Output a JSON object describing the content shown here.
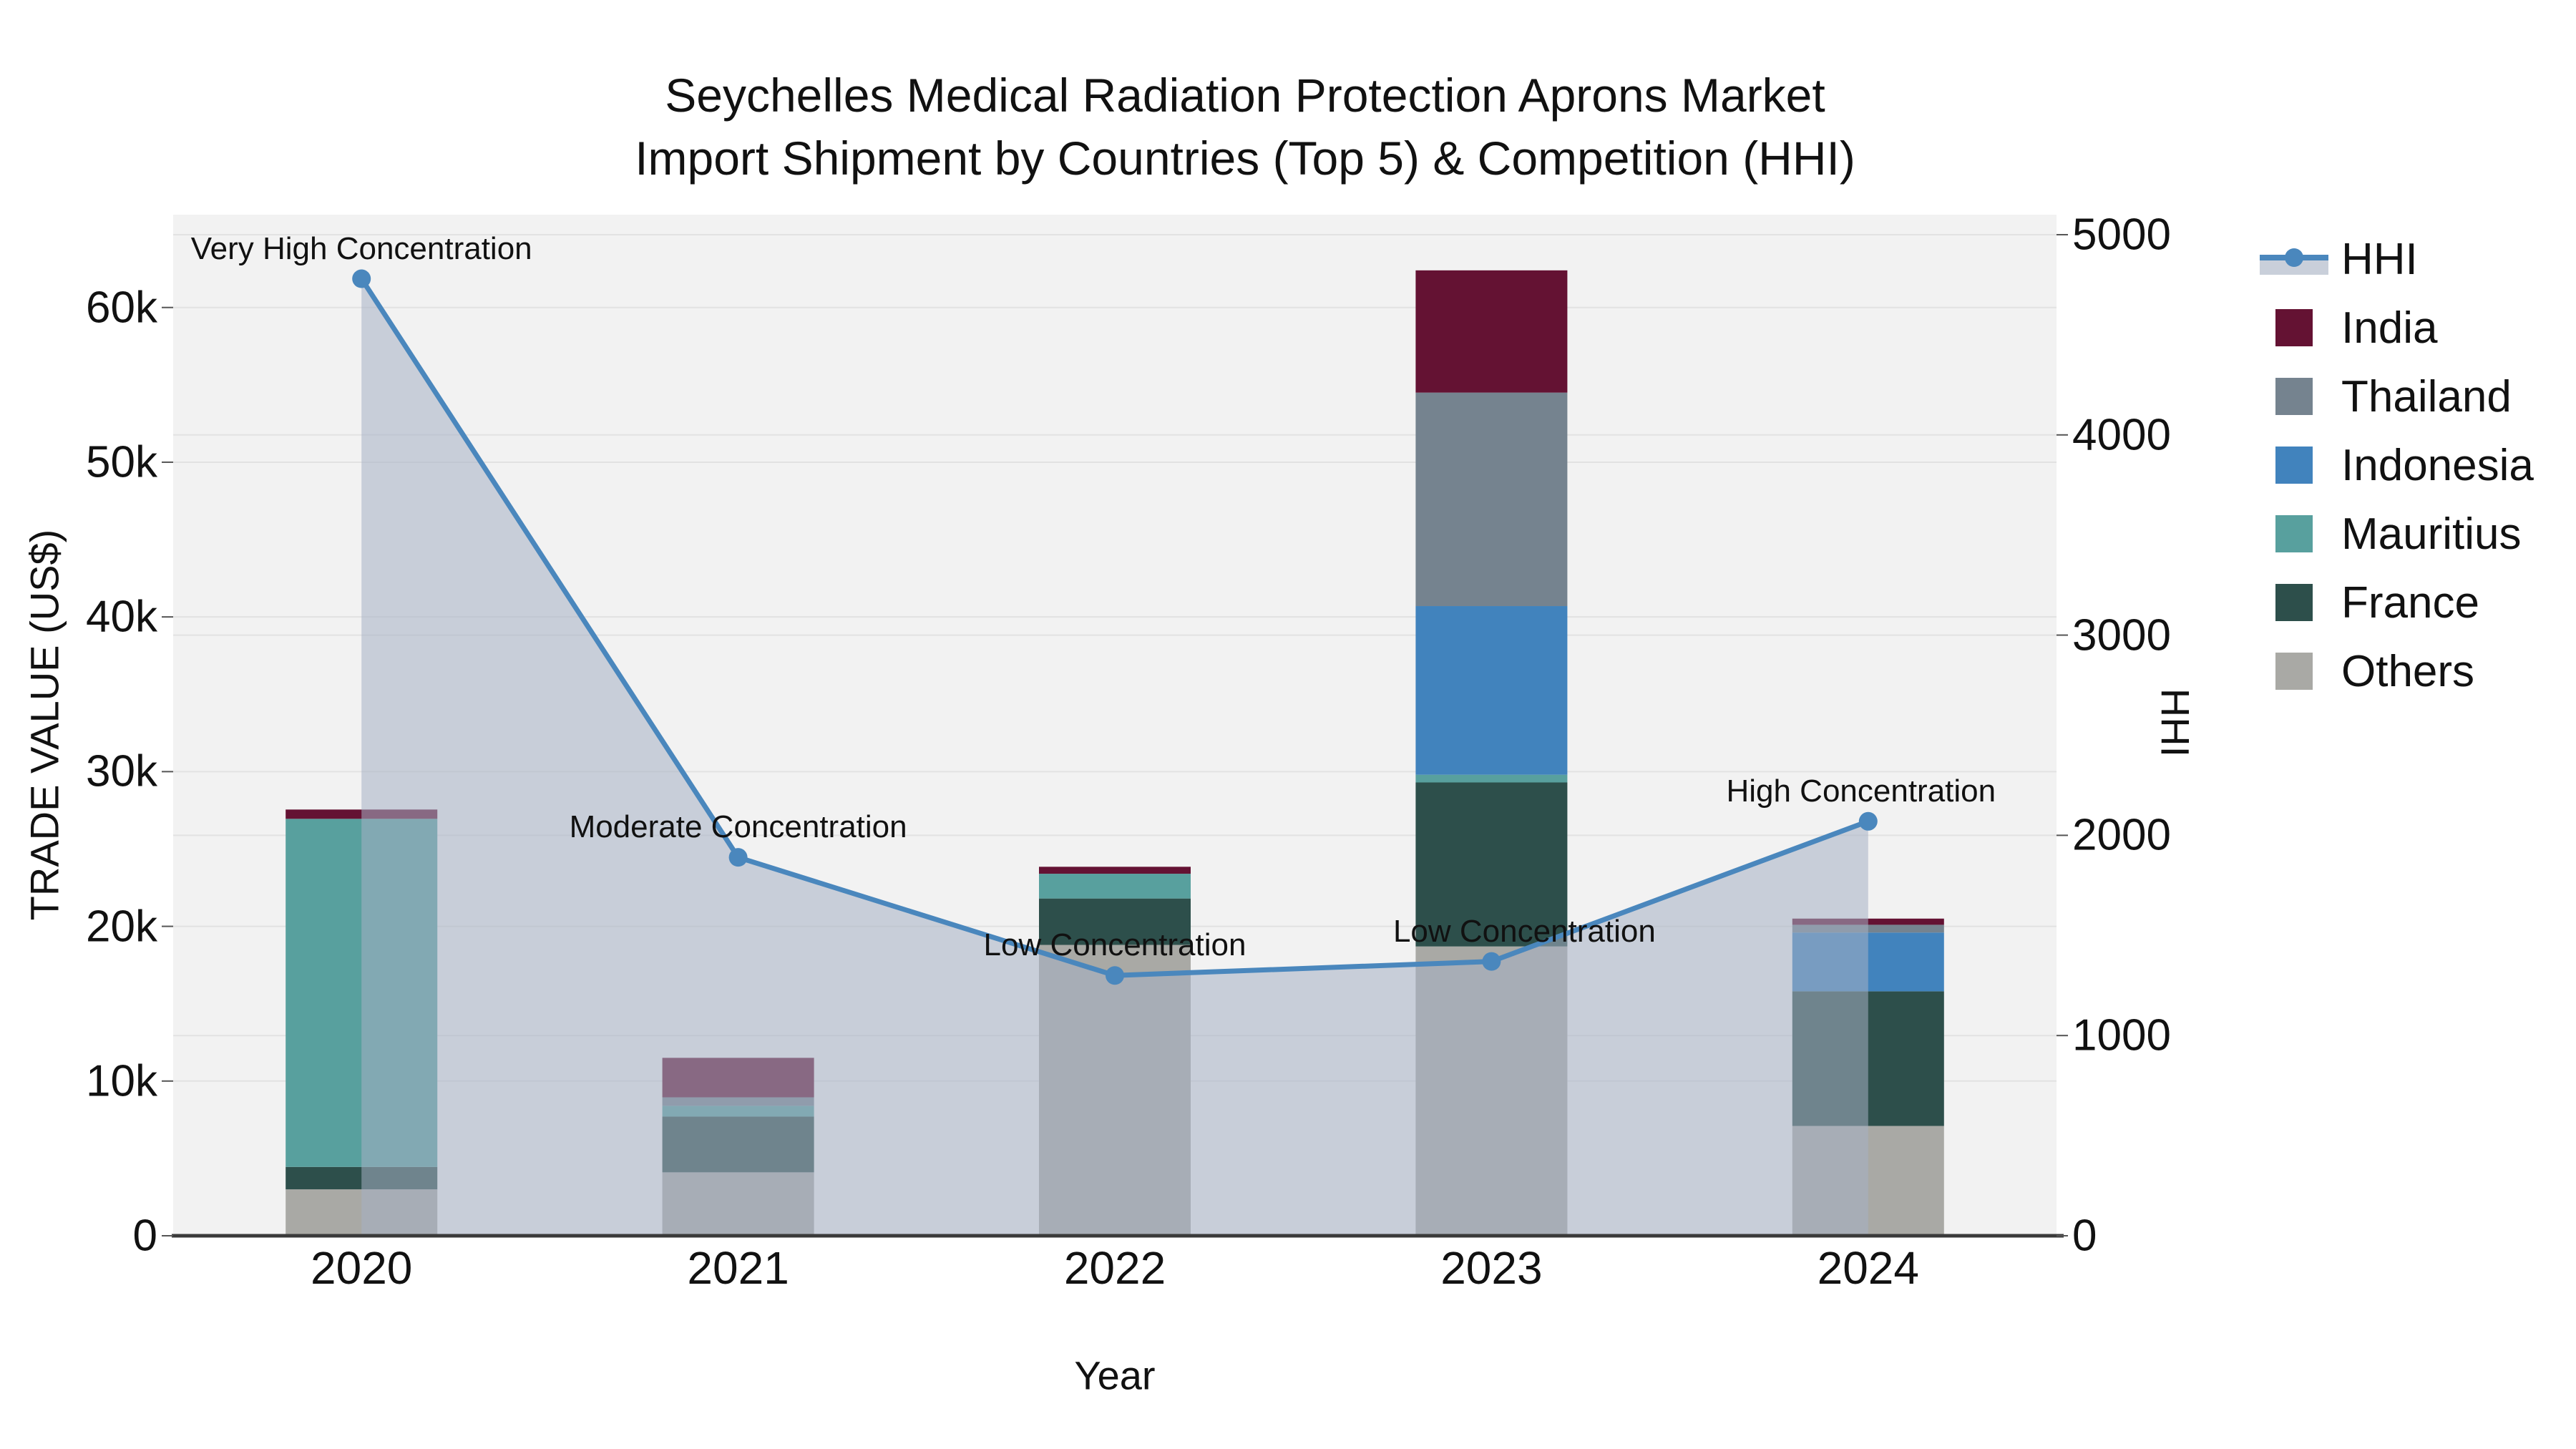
{
  "title": {
    "line1": "Seychelles Medical Radiation Protection Aprons Market",
    "line2": "Import Shipment by Countries (Top 5) & Competition (HHI)"
  },
  "axes": {
    "left": {
      "title": "TRADE VALUE (US$)",
      "tick_labels": [
        "0",
        "10k",
        "20k",
        "30k",
        "40k",
        "50k",
        "60k"
      ],
      "tick_values": [
        0,
        10000,
        20000,
        30000,
        40000,
        50000,
        60000
      ],
      "range": [
        0,
        66000
      ]
    },
    "right": {
      "title": "HHI",
      "tick_labels": [
        "0",
        "1000",
        "2000",
        "3000",
        "4000",
        "5000"
      ],
      "tick_values": [
        0,
        1000,
        2000,
        3000,
        4000,
        5000
      ],
      "range": [
        0,
        5100
      ]
    },
    "x": {
      "title": "Year",
      "categories": [
        "2020",
        "2021",
        "2022",
        "2023",
        "2024"
      ]
    }
  },
  "legend": {
    "items": [
      {
        "label": "HHI",
        "type": "line",
        "color_key": "hhi_line"
      },
      {
        "label": "India",
        "type": "swatch",
        "color_key": "india"
      },
      {
        "label": "Thailand",
        "type": "swatch",
        "color_key": "thailand"
      },
      {
        "label": "Indonesia",
        "type": "swatch",
        "color_key": "indonesia"
      },
      {
        "label": "Mauritius",
        "type": "swatch",
        "color_key": "mauritius"
      },
      {
        "label": "France",
        "type": "swatch",
        "color_key": "france"
      },
      {
        "label": "Others",
        "type": "swatch",
        "color_key": "others"
      }
    ]
  },
  "annotations": [
    {
      "year": "2020",
      "text": "Very High Concentration"
    },
    {
      "year": "2021",
      "text": "Moderate Concentration"
    },
    {
      "year": "2022",
      "text": "Low Concentration"
    },
    {
      "year": "2023",
      "text": "Low Concentration"
    },
    {
      "year": "2024",
      "text": "High Concentration"
    }
  ],
  "colors": {
    "hhi_line": "#4a87bd",
    "hhi_area_fill": "rgba(165,177,196,0.55)",
    "india": "#641233",
    "thailand": "#75838f",
    "indonesia": "#4183bd",
    "mauritius": "#58a09e",
    "france": "#2d4f4b",
    "others": "#a9a9a5",
    "plot_background": "#f2f2f2",
    "gridline": "#e2e2e2",
    "axis_line": "#3a3a3a",
    "text": "#111111"
  },
  "chart_data": {
    "type": "bar+line",
    "title": "Seychelles Medical Radiation Protection Aprons Market — Import Shipment by Countries (Top 5) & Competition (HHI)",
    "categories": [
      "2020",
      "2021",
      "2022",
      "2023",
      "2024"
    ],
    "xlabel": "Year",
    "ylabel_left": "TRADE VALUE (US$)",
    "ylabel_right": "HHI",
    "ylim_left": [
      0,
      66000
    ],
    "ylim_right": [
      0,
      5100
    ],
    "grid": true,
    "legend_position": "right",
    "bar_stack_order_bottom_up": [
      "Others",
      "France",
      "Mauritius",
      "Indonesia",
      "Thailand",
      "India"
    ],
    "bar_series": [
      {
        "name": "Others",
        "color_key": "others",
        "values": [
          3000,
          4100,
          18800,
          18700,
          7100
        ]
      },
      {
        "name": "France",
        "color_key": "france",
        "values": [
          1450,
          3600,
          3000,
          10600,
          8700
        ]
      },
      {
        "name": "Mauritius",
        "color_key": "mauritius",
        "values": [
          22500,
          700,
          1600,
          500,
          0
        ]
      },
      {
        "name": "Indonesia",
        "color_key": "indonesia",
        "values": [
          0,
          0,
          0,
          10900,
          3800
        ]
      },
      {
        "name": "Thailand",
        "color_key": "thailand",
        "values": [
          0,
          550,
          0,
          13800,
          500
        ]
      },
      {
        "name": "India",
        "color_key": "india",
        "values": [
          600,
          2550,
          450,
          7900,
          400
        ]
      }
    ],
    "bar_totals": [
      27550,
      11500,
      23850,
      62400,
      20500
    ],
    "line_series": {
      "name": "HHI",
      "axis": "right",
      "area_fill": true,
      "values": [
        4780,
        1890,
        1300,
        1370,
        2070
      ]
    }
  }
}
